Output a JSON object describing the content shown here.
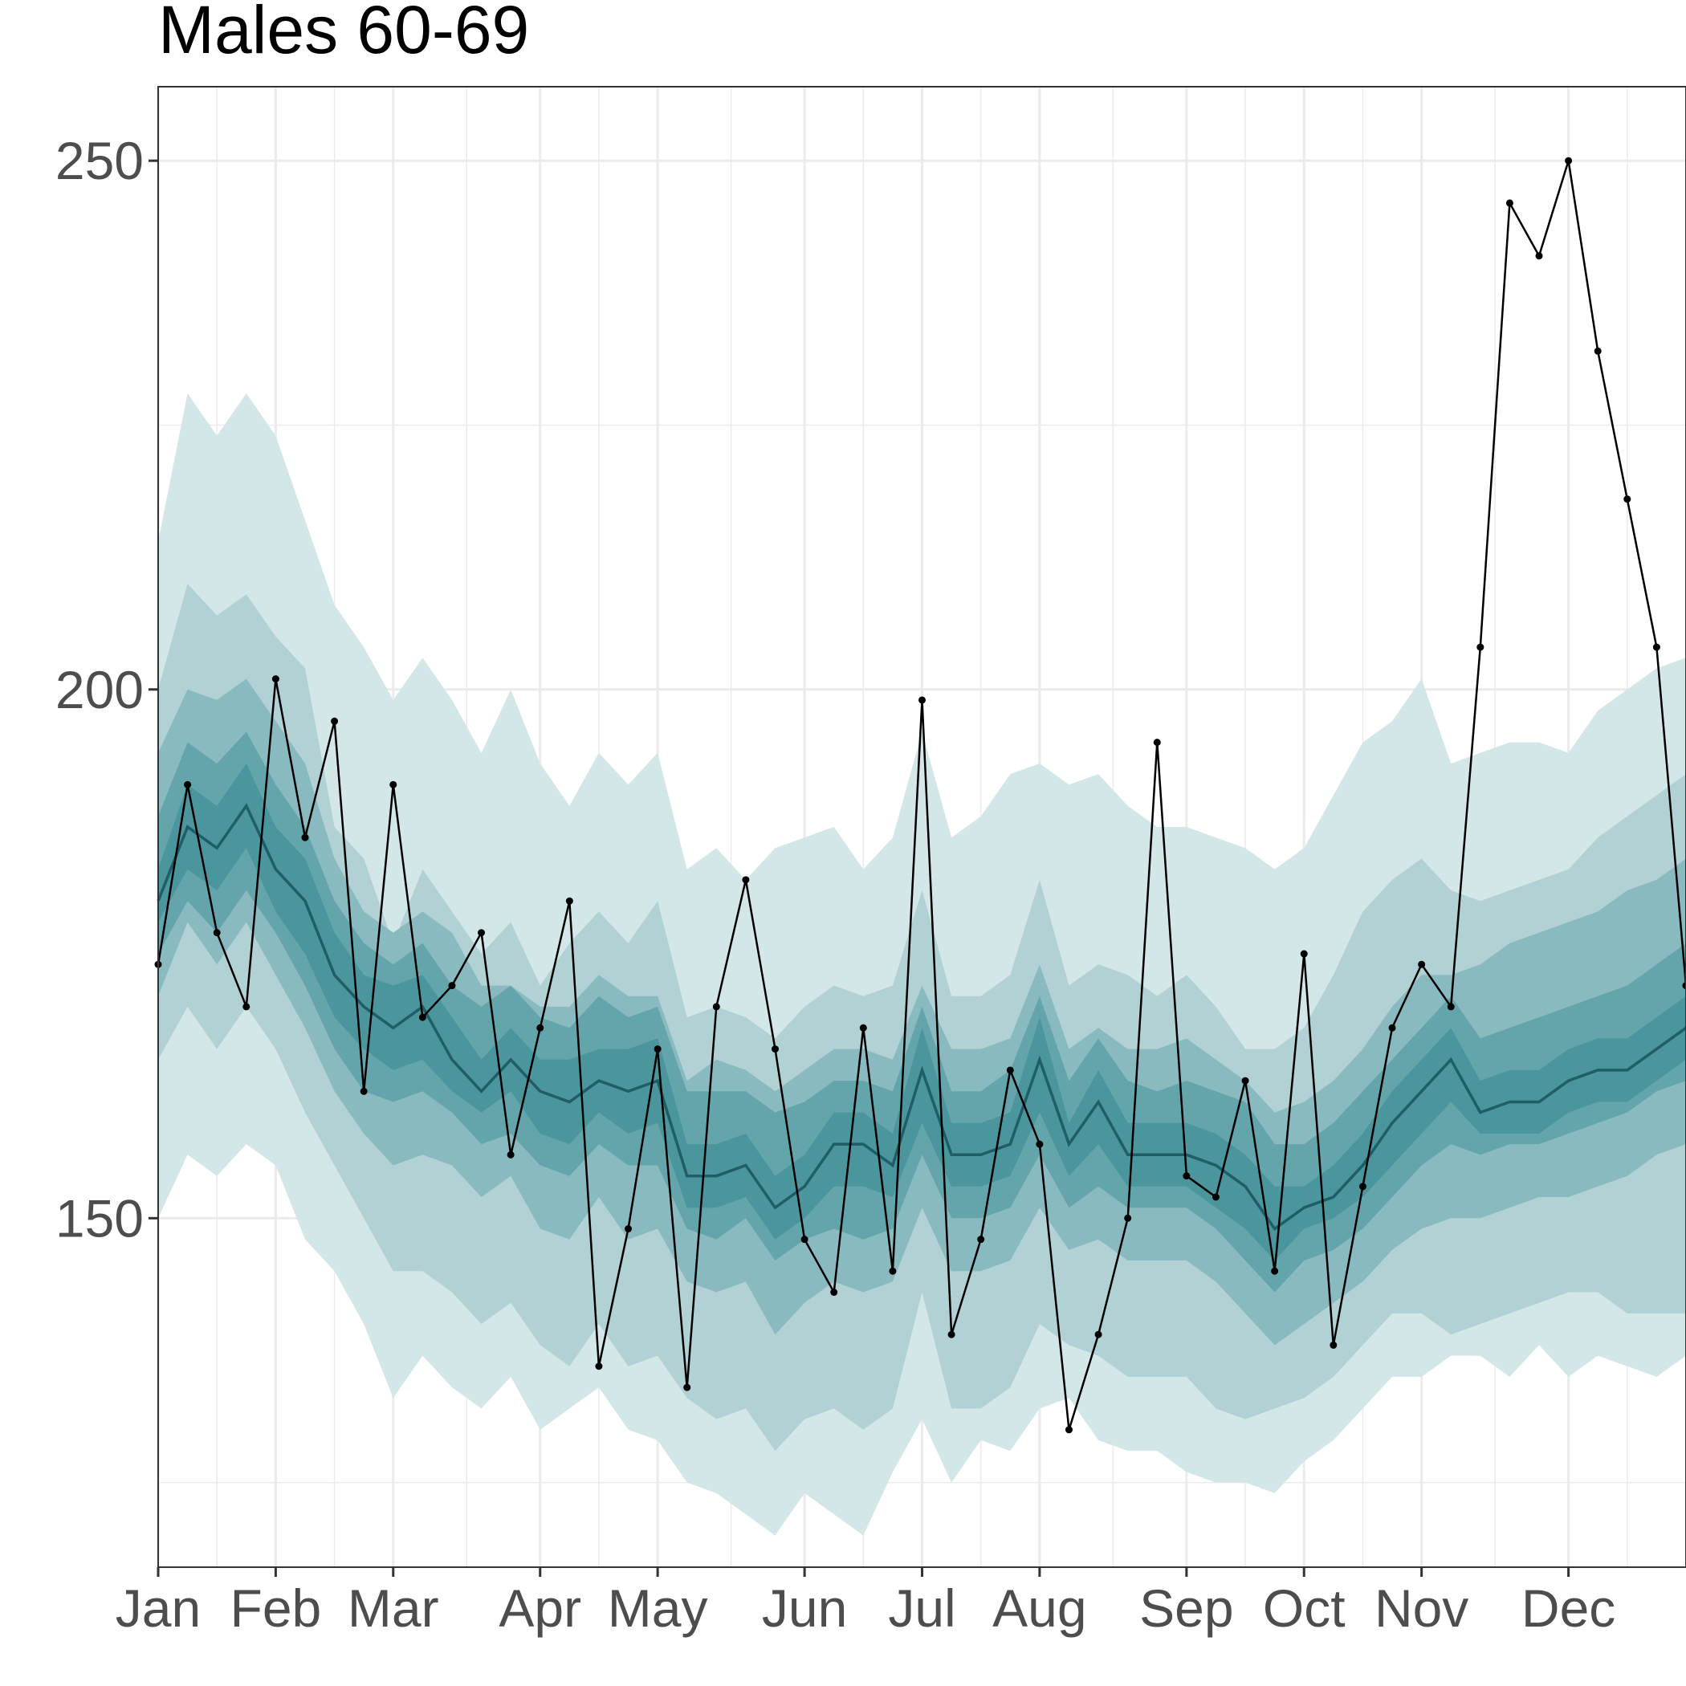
{
  "chart_data": {
    "type": "line",
    "title": "Males 60-69",
    "xlabel": "",
    "ylabel": "",
    "x_ticks": [
      {
        "label": "Jan",
        "week": 1
      },
      {
        "label": "Feb",
        "week": 5
      },
      {
        "label": "Mar",
        "week": 9
      },
      {
        "label": "Apr",
        "week": 14
      },
      {
        "label": "May",
        "week": 18
      },
      {
        "label": "Jun",
        "week": 23
      },
      {
        "label": "Jul",
        "week": 27
      },
      {
        "label": "Aug",
        "week": 31
      },
      {
        "label": "Sep",
        "week": 36
      },
      {
        "label": "Oct",
        "week": 40
      },
      {
        "label": "Nov",
        "week": 44
      },
      {
        "label": "Dec",
        "week": 49
      }
    ],
    "xlim": [
      1,
      53
    ],
    "ylim": [
      117,
      257
    ],
    "y_ticks": [
      150,
      200,
      250
    ],
    "grid": true,
    "weeks": [
      1,
      2,
      3,
      4,
      5,
      6,
      7,
      8,
      9,
      10,
      11,
      12,
      13,
      14,
      15,
      16,
      17,
      18,
      19,
      20,
      21,
      22,
      23,
      24,
      25,
      26,
      27,
      28,
      29,
      30,
      31,
      32,
      33,
      34,
      35,
      36,
      37,
      38,
      39,
      40,
      41,
      42,
      43,
      44,
      45,
      46,
      47,
      48,
      49,
      50,
      51,
      52,
      53
    ],
    "observed": [
      174,
      191,
      177,
      170,
      201,
      186,
      197,
      162,
      191,
      169,
      172,
      177,
      156,
      168,
      180,
      136,
      149,
      166,
      134,
      170,
      182,
      166,
      148,
      143,
      168,
      145,
      199,
      139,
      148,
      164,
      157,
      130,
      139,
      150,
      195,
      154,
      152,
      163,
      145,
      175,
      138,
      153,
      168,
      174,
      170,
      204,
      246,
      241,
      250,
      232,
      218,
      204,
      172
    ],
    "median": [
      180,
      187,
      185,
      189,
      183,
      180,
      173,
      170,
      168,
      170,
      165,
      162,
      165,
      162,
      161,
      163,
      162,
      163,
      154,
      154,
      155,
      151,
      153,
      157,
      157,
      155,
      164,
      156,
      156,
      157,
      165,
      157,
      161,
      156,
      156,
      156,
      155,
      153,
      149,
      151,
      152,
      155,
      159,
      162,
      165,
      160,
      161,
      161,
      163,
      164,
      164,
      166,
      168
    ],
    "bands": [
      {
        "name": "",
        "color": "#d3e6e8",
        "lower": [
          150,
          156,
          154,
          157,
          155,
          148,
          145,
          140,
          133,
          137,
          134,
          132,
          135,
          130,
          132,
          134,
          130,
          129,
          125,
          124,
          122,
          120,
          124,
          122,
          120,
          126,
          131,
          125,
          129,
          128,
          132,
          133,
          129,
          128,
          128,
          126,
          125,
          125,
          124,
          127,
          129,
          132,
          135,
          135,
          137,
          137,
          135,
          138,
          135,
          137,
          136,
          135,
          137
        ],
        "upper": [
          214,
          228,
          224,
          228,
          224,
          216,
          208,
          204,
          199,
          203,
          199,
          194,
          200,
          193,
          189,
          194,
          191,
          194,
          183,
          185,
          182,
          185,
          186,
          187,
          183,
          186,
          196,
          186,
          188,
          192,
          193,
          191,
          192,
          189,
          187,
          187,
          186,
          185,
          183,
          185,
          190,
          195,
          197,
          201,
          193,
          194,
          195,
          195,
          194,
          198,
          200,
          202,
          203
        ]
      },
      {
        "name": "",
        "color": "#b1d1d4",
        "lower": [
          165,
          170,
          166,
          170,
          166,
          160,
          155,
          150,
          145,
          145,
          143,
          140,
          142,
          138,
          136,
          140,
          136,
          137,
          133,
          131,
          132,
          128,
          131,
          132,
          130,
          132,
          143,
          132,
          132,
          134,
          140,
          138,
          137,
          135,
          135,
          135,
          132,
          131,
          132,
          133,
          135,
          138,
          141,
          141,
          139,
          140,
          141,
          142,
          143,
          143,
          141,
          141,
          141
        ],
        "upper": [
          200,
          210,
          207,
          209,
          205,
          202,
          187,
          184,
          176,
          183,
          179,
          175,
          178,
          172,
          176,
          179,
          176,
          180,
          169,
          170,
          169,
          167,
          170,
          172,
          171,
          172,
          181,
          171,
          171,
          173,
          182,
          172,
          174,
          173,
          171,
          173,
          170,
          166,
          166,
          168,
          173,
          179,
          182,
          184,
          181,
          180,
          181,
          182,
          183,
          186,
          188,
          190,
          192
        ]
      },
      {
        "name": "",
        "color": "#88babf",
        "lower": [
          171,
          178,
          174,
          178,
          173,
          168,
          162,
          158,
          155,
          156,
          155,
          152,
          154,
          149,
          148,
          152,
          148,
          149,
          144,
          143,
          144,
          139,
          142,
          144,
          143,
          144,
          151,
          145,
          145,
          146,
          151,
          147,
          148,
          146,
          146,
          146,
          144,
          141,
          138,
          140,
          142,
          144,
          147,
          149,
          150,
          150,
          151,
          152,
          152,
          153,
          154,
          156,
          157
        ],
        "upper": [
          194,
          200,
          199,
          201,
          197,
          193,
          184,
          179,
          177,
          179,
          177,
          172,
          172,
          170,
          170,
          173,
          171,
          171,
          163,
          165,
          164,
          162,
          164,
          166,
          166,
          165,
          172,
          166,
          166,
          167,
          174,
          166,
          168,
          166,
          166,
          167,
          165,
          163,
          160,
          161,
          163,
          166,
          170,
          173,
          173,
          174,
          176,
          177,
          178,
          179,
          181,
          182,
          184
        ]
      },
      {
        "name": "",
        "color": "#63a5ab",
        "lower": [
          175,
          180,
          177,
          181,
          177,
          172,
          166,
          162,
          161,
          162,
          160,
          157,
          158,
          155,
          154,
          157,
          155,
          155,
          149,
          148,
          150,
          146,
          148,
          149,
          148,
          149,
          156,
          150,
          150,
          151,
          156,
          151,
          153,
          151,
          151,
          151,
          149,
          146,
          143,
          146,
          147,
          149,
          152,
          155,
          157,
          156,
          157,
          157,
          158,
          159,
          160,
          162,
          163
        ],
        "upper": [
          188,
          195,
          193,
          196,
          191,
          187,
          180,
          176,
          174,
          176,
          172,
          170,
          172,
          169,
          168,
          171,
          169,
          170,
          162,
          162,
          162,
          160,
          161,
          163,
          163,
          162,
          170,
          162,
          162,
          164,
          171,
          163,
          167,
          163,
          162,
          163,
          162,
          161,
          157,
          157,
          159,
          162,
          165,
          168,
          171,
          167,
          168,
          169,
          170,
          171,
          172,
          174,
          176
        ]
      },
      {
        "name": "",
        "color": "#4b959d",
        "lower": [
          178,
          183,
          181,
          185,
          179,
          175,
          169,
          166,
          164,
          165,
          162,
          160,
          162,
          158,
          157,
          160,
          158,
          159,
          151,
          151,
          152,
          148,
          150,
          153,
          153,
          152,
          159,
          153,
          153,
          154,
          160,
          154,
          157,
          153,
          153,
          153,
          151,
          149,
          146,
          149,
          150,
          152,
          155,
          158,
          161,
          158,
          158,
          158,
          160,
          161,
          161,
          163,
          165
        ],
        "upper": [
          183,
          191,
          189,
          193,
          187,
          184,
          177,
          173,
          172,
          173,
          169,
          165,
          168,
          165,
          165,
          166,
          166,
          167,
          157,
          157,
          158,
          154,
          156,
          160,
          160,
          158,
          168,
          159,
          159,
          160,
          169,
          159,
          164,
          159,
          159,
          159,
          158,
          156,
          153,
          153,
          155,
          158,
          162,
          165,
          168,
          163,
          164,
          164,
          166,
          167,
          167,
          169,
          171
        ]
      }
    ]
  }
}
